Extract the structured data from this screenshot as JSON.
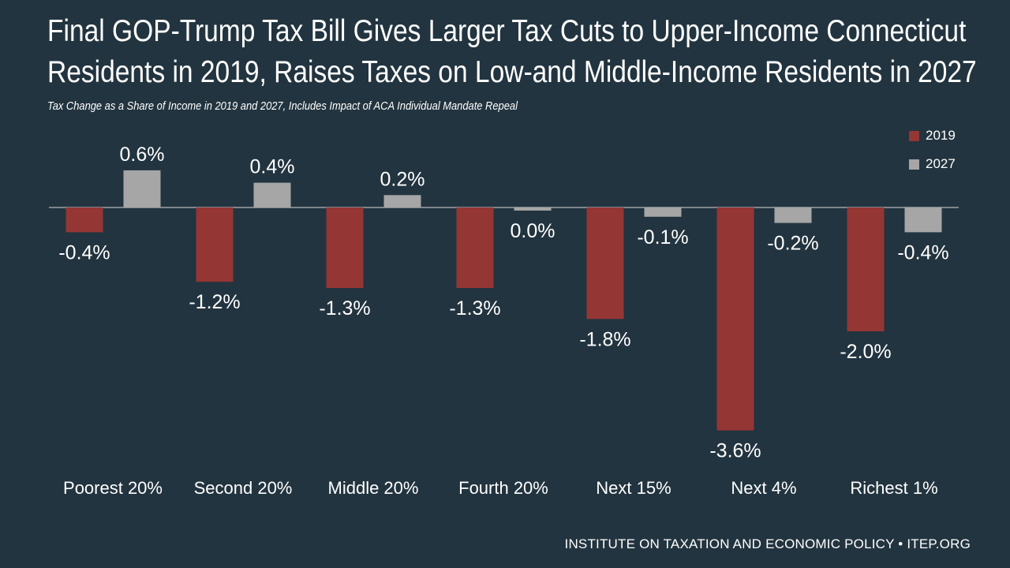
{
  "title_line1": "Final GOP-Trump Tax Bill Gives Larger Tax Cuts to Upper-Income Connecticut",
  "title_line2": "Residents in 2019, Raises Taxes on Low-and Middle-Income Residents in 2027",
  "subtitle": "Tax Change as a Share of Income in 2019 and 2027, Includes Impact of ACA Individual Mandate Repeal",
  "footer": "INSTITUTE ON TAXATION AND ECONOMIC POLICY • ITEP.ORG",
  "colors": {
    "background": "#22343f",
    "series_2019": "#943634",
    "series_2027": "#a6a6a6"
  },
  "chart_data": {
    "type": "bar",
    "categories": [
      "Poorest 20%",
      "Second 20%",
      "Middle 20%",
      "Fourth 20%",
      "Next 15%",
      "Next 4%",
      "Richest 1%"
    ],
    "series": [
      {
        "name": "2019",
        "values": [
          -0.4,
          -1.2,
          -1.3,
          -1.3,
          -1.8,
          -3.6,
          -2.0
        ],
        "labels": [
          "-0.4%",
          "-1.2%",
          "-1.3%",
          "-1.3%",
          "-1.8%",
          "-3.6%",
          "-2.0%"
        ]
      },
      {
        "name": "2027",
        "values": [
          0.6,
          0.4,
          0.2,
          -0.05,
          -0.15,
          -0.25,
          -0.4
        ],
        "labels": [
          "0.6%",
          "0.4%",
          "0.2%",
          "0.0%",
          "-0.1%",
          "-0.2%",
          "-0.4%"
        ]
      }
    ],
    "title": "Final GOP-Trump Tax Bill Gives Larger Tax Cuts to Upper-Income Connecticut Residents in 2019, Raises Taxes on Low-and Middle-Income Residents in 2027",
    "xlabel": "",
    "ylabel": "",
    "ylim": [
      -3.6,
      0.6
    ],
    "grid": false,
    "legend": "top-right"
  }
}
